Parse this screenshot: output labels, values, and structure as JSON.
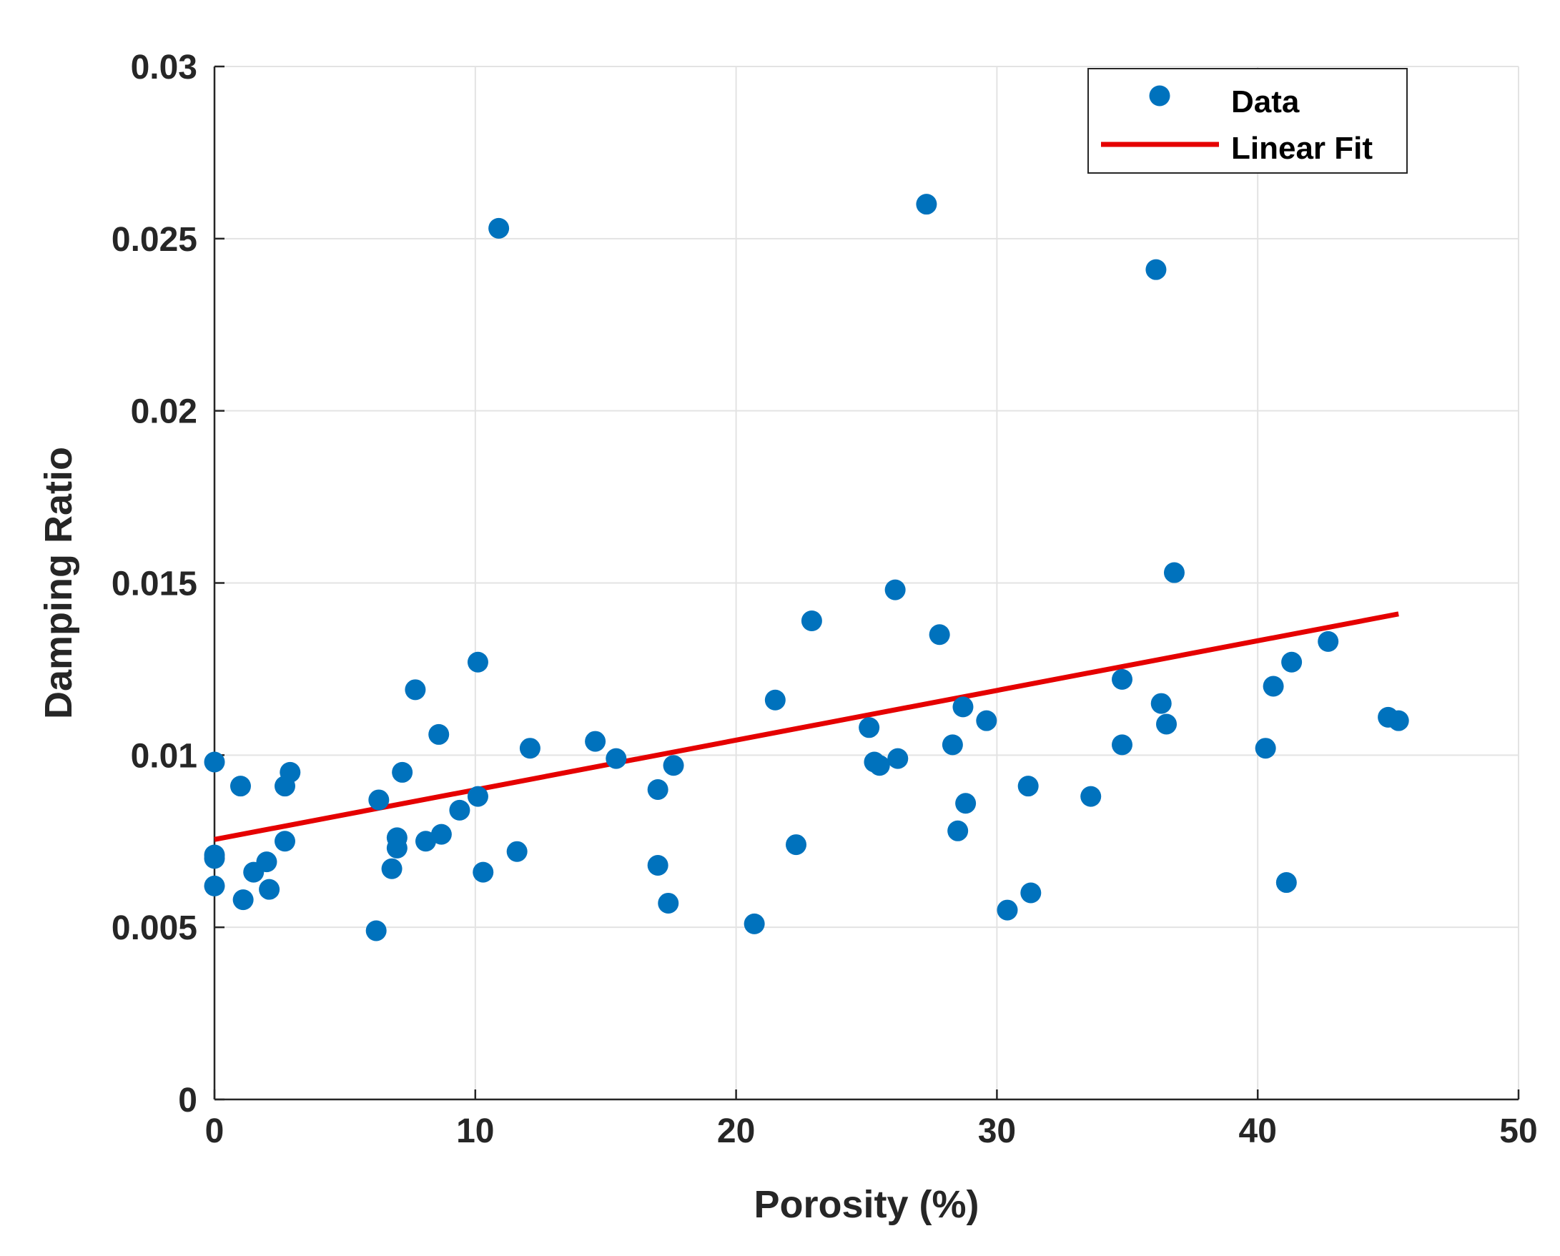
{
  "chart_data": {
    "type": "scatter",
    "title": "",
    "xlabel": "Porosity (%)",
    "ylabel": "Damping Ratio",
    "xlim": [
      0,
      50
    ],
    "ylim": [
      0,
      0.03
    ],
    "grid": true,
    "xticks": [
      0,
      10,
      20,
      30,
      40,
      50
    ],
    "yticks": [
      0,
      0.005,
      0.01,
      0.015,
      0.02,
      0.025,
      0.03
    ],
    "xtick_labels": [
      "0",
      "10",
      "20",
      "30",
      "40",
      "50"
    ],
    "ytick_labels": [
      "0",
      "0.005",
      "0.01",
      "0.015",
      "0.02",
      "0.025",
      "0.03"
    ],
    "legend_position": "top-right",
    "colors": {
      "data": "#0072BD",
      "fit": "#E50000"
    },
    "series": [
      {
        "name": "Data",
        "kind": "scatter",
        "points": [
          [
            0,
            0.0098
          ],
          [
            0,
            0.0071
          ],
          [
            0,
            0.007
          ],
          [
            0,
            0.0062
          ],
          [
            1.0,
            0.0091
          ],
          [
            1.1,
            0.0058
          ],
          [
            1.5,
            0.0066
          ],
          [
            2.0,
            0.0069
          ],
          [
            2.1,
            0.0061
          ],
          [
            2.7,
            0.0075
          ],
          [
            2.7,
            0.0091
          ],
          [
            2.9,
            0.0095
          ],
          [
            6.2,
            0.0049
          ],
          [
            6.3,
            0.0087
          ],
          [
            6.8,
            0.0067
          ],
          [
            7.0,
            0.0076
          ],
          [
            7.0,
            0.0073
          ],
          [
            7.2,
            0.0095
          ],
          [
            7.7,
            0.0119
          ],
          [
            8.1,
            0.0075
          ],
          [
            8.6,
            0.0106
          ],
          [
            8.7,
            0.0077
          ],
          [
            9.4,
            0.0084
          ],
          [
            10.1,
            0.0127
          ],
          [
            10.1,
            0.0088
          ],
          [
            10.3,
            0.0066
          ],
          [
            10.9,
            0.0253
          ],
          [
            11.6,
            0.0072
          ],
          [
            12.1,
            0.0102
          ],
          [
            14.6,
            0.0104
          ],
          [
            15.4,
            0.0099
          ],
          [
            17.0,
            0.009
          ],
          [
            17.0,
            0.0068
          ],
          [
            17.4,
            0.0057
          ],
          [
            17.6,
            0.0097
          ],
          [
            20.7,
            0.0051
          ],
          [
            21.5,
            0.0116
          ],
          [
            22.3,
            0.0074
          ],
          [
            22.9,
            0.0139
          ],
          [
            25.1,
            0.0108
          ],
          [
            25.3,
            0.0098
          ],
          [
            25.5,
            0.0097
          ],
          [
            26.1,
            0.0148
          ],
          [
            26.2,
            0.0099
          ],
          [
            27.3,
            0.026
          ],
          [
            27.8,
            0.0135
          ],
          [
            28.3,
            0.0103
          ],
          [
            28.5,
            0.0078
          ],
          [
            28.7,
            0.0114
          ],
          [
            28.8,
            0.0086
          ],
          [
            29.6,
            0.011
          ],
          [
            30.4,
            0.0055
          ],
          [
            31.2,
            0.0091
          ],
          [
            31.3,
            0.006
          ],
          [
            33.6,
            0.0088
          ],
          [
            34.8,
            0.0122
          ],
          [
            34.8,
            0.0103
          ],
          [
            36.1,
            0.0241
          ],
          [
            36.3,
            0.0115
          ],
          [
            36.5,
            0.0109
          ],
          [
            36.8,
            0.0153
          ],
          [
            40.3,
            0.0102
          ],
          [
            40.6,
            0.012
          ],
          [
            41.1,
            0.0063
          ],
          [
            41.3,
            0.0127
          ],
          [
            42.7,
            0.0133
          ],
          [
            45.0,
            0.0111
          ],
          [
            45.4,
            0.011
          ]
        ]
      },
      {
        "name": "Linear Fit",
        "kind": "line",
        "x": [
          0,
          45.4
        ],
        "y": [
          0.00755,
          0.0141
        ]
      }
    ]
  }
}
